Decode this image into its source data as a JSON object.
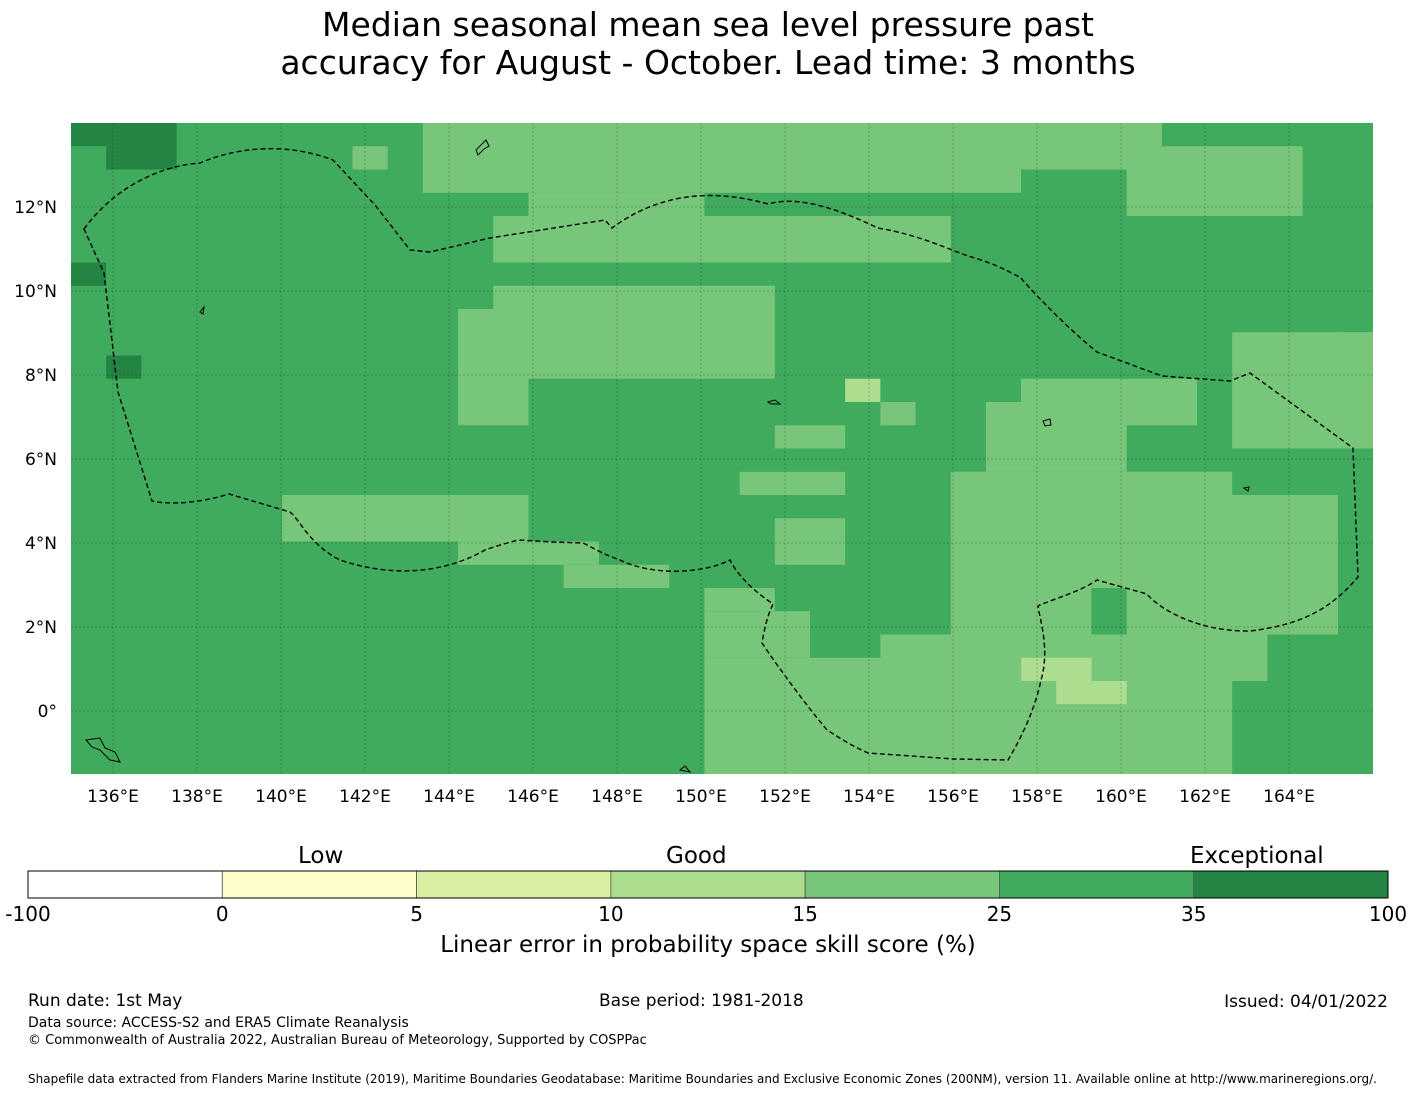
{
  "title": {
    "line1": "Median seasonal mean sea level pressure past",
    "line2": "accuracy for August - October. Lead time: 3 months"
  },
  "map": {
    "lon_range": [
      135,
      166
    ],
    "lat_range": [
      -1.5,
      14
    ],
    "x_ticks": [
      "136°E",
      "138°E",
      "140°E",
      "142°E",
      "144°E",
      "146°E",
      "148°E",
      "150°E",
      "152°E",
      "154°E",
      "156°E",
      "158°E",
      "160°E",
      "162°E",
      "164°E"
    ],
    "y_ticks": [
      "12°N",
      "10°N",
      "8°N",
      "6°N",
      "4°N",
      "2°N",
      "0°"
    ],
    "background_skill_class": "25-35",
    "eez_boundary_style": "dashed",
    "colors": {
      "below_0": "#ffffff",
      "0_5": "#ffffcc",
      "5_10": "#d9f0a3",
      "10_15": "#addd8e",
      "15_25": "#78c679",
      "25_35": "#41ab5d",
      "35_100": "#238443"
    }
  },
  "colorbar": {
    "categories": [
      "Low",
      "Good",
      "Exceptional"
    ],
    "ticks": [
      "-100",
      "0",
      "5",
      "10",
      "15",
      "25",
      "35",
      "100"
    ],
    "label": "Linear error in probability space skill score (%)"
  },
  "footer": {
    "run_date": "Run date: 1st May",
    "base_period": "Base period: 1981-2018",
    "issued": "Issued: 04/01/2022",
    "data_source": "Data source: ACCESS-S2 and ERA5 Climate Reanalysis",
    "copyright": "© Commonwealth of Australia 2022, Australian Bureau of Meteorology, Supported by COSPPac",
    "shapefile": "Shapefile data extracted from Flanders Marine Institute (2019), Maritime Boundaries Geodatabase: Maritime Boundaries and Exclusive Economic Zones (200NM), version 11. Available online at http://www.marineregions.org/."
  }
}
